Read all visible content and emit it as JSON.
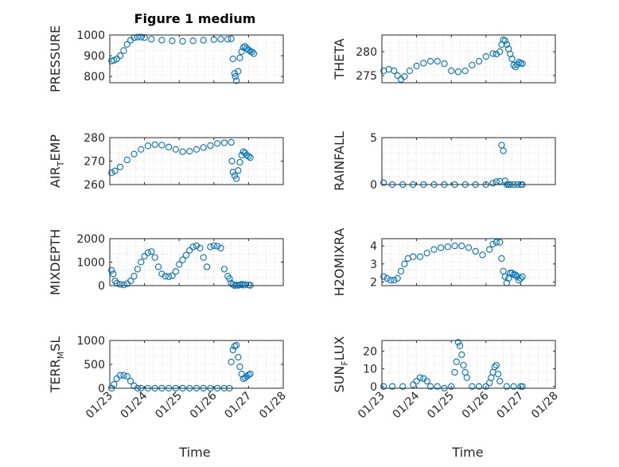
{
  "figure": {
    "title": "Figure 1 medium",
    "marker_color": "#0072BD"
  },
  "chart_data": [
    {
      "type": "scatter",
      "ylabel": "PRESSURE",
      "ylim": [
        770,
        1000
      ],
      "yticks": [
        800,
        900,
        1000
      ],
      "xlim": [
        0,
        5
      ],
      "xticks": [
        "01/23",
        "01/24",
        "01/25",
        "01/26",
        "01/27",
        "01/28"
      ],
      "grid": true,
      "x": [
        0.05,
        0.12,
        0.2,
        0.3,
        0.4,
        0.5,
        0.6,
        0.7,
        0.8,
        0.9,
        1.0,
        1.2,
        1.5,
        1.8,
        2.1,
        2.4,
        2.7,
        3.0,
        3.2,
        3.4,
        3.5,
        3.55,
        3.6,
        3.62,
        3.65,
        3.7,
        3.75,
        3.8,
        3.85,
        3.9,
        3.95,
        4.0,
        4.05,
        4.1,
        4.15
      ],
      "y": [
        875,
        878,
        885,
        900,
        925,
        955,
        975,
        987,
        990,
        990,
        988,
        980,
        975,
        972,
        970,
        972,
        975,
        978,
        980,
        980,
        982,
        885,
        815,
        800,
        780,
        825,
        890,
        920,
        940,
        945,
        935,
        928,
        922,
        918,
        910
      ]
    },
    {
      "type": "scatter",
      "ylabel": "THETA",
      "ylim": [
        273.5,
        283.5
      ],
      "yticks": [
        275,
        280
      ],
      "xlim": [
        0,
        5
      ],
      "xticks": [
        "01/23",
        "01/24",
        "01/25",
        "01/26",
        "01/27",
        "01/28"
      ],
      "grid": true,
      "x": [
        0.05,
        0.2,
        0.35,
        0.45,
        0.55,
        0.65,
        0.8,
        1.0,
        1.2,
        1.4,
        1.6,
        1.8,
        2.0,
        2.2,
        2.4,
        2.6,
        2.8,
        3.0,
        3.2,
        3.3,
        3.4,
        3.45,
        3.5,
        3.55,
        3.6,
        3.65,
        3.7,
        3.75,
        3.8,
        3.85,
        3.9,
        3.95,
        4.0,
        4.05
      ],
      "y": [
        276,
        276.3,
        276,
        275,
        274.2,
        274.8,
        276,
        277,
        277.6,
        278,
        278,
        277.5,
        276,
        275.8,
        276,
        277.2,
        278,
        279,
        279.6,
        279.5,
        280,
        281.5,
        282.5,
        282.3,
        281.5,
        280.6,
        279.5,
        278.5,
        277.2,
        276.8,
        277.3,
        277.8,
        277.6,
        277.5
      ]
    },
    {
      "type": "scatter",
      "ylabel": "AIR_TEMP",
      "ylim": [
        260,
        280
      ],
      "yticks": [
        260,
        270,
        280
      ],
      "xlim": [
        0,
        5
      ],
      "xticks": [
        "01/23",
        "01/24",
        "01/25",
        "01/26",
        "01/27",
        "01/28"
      ],
      "grid": true,
      "x": [
        0.05,
        0.15,
        0.3,
        0.5,
        0.7,
        0.9,
        1.1,
        1.3,
        1.5,
        1.7,
        1.9,
        2.1,
        2.3,
        2.5,
        2.7,
        2.9,
        3.1,
        3.3,
        3.5,
        3.52,
        3.55,
        3.6,
        3.65,
        3.7,
        3.75,
        3.8,
        3.85,
        3.9,
        3.95,
        4.0,
        4.05
      ],
      "y": [
        265,
        265.8,
        267.5,
        270.5,
        273,
        275,
        276.5,
        277,
        276.8,
        276,
        275,
        274,
        274.2,
        275,
        275.8,
        276.6,
        277.5,
        277.8,
        278,
        270,
        265.3,
        263.8,
        262.5,
        266,
        269.5,
        272.5,
        274,
        273.5,
        272.5,
        272,
        271.5
      ]
    },
    {
      "type": "scatter",
      "ylabel": "RAINFALL",
      "ylim": [
        0,
        5
      ],
      "yticks": [
        0,
        5
      ],
      "xlim": [
        0,
        5
      ],
      "xticks": [
        "01/23",
        "01/24",
        "01/25",
        "01/26",
        "01/27",
        "01/28"
      ],
      "grid": true,
      "x": [
        0.05,
        0.3,
        0.6,
        0.9,
        1.2,
        1.5,
        1.8,
        2.1,
        2.4,
        2.7,
        3.0,
        3.2,
        3.3,
        3.4,
        3.45,
        3.5,
        3.55,
        3.6,
        3.65,
        3.7,
        3.8,
        3.9,
        4.0,
        4.05
      ],
      "y": [
        0.2,
        0,
        0,
        0,
        0,
        0,
        0,
        0,
        0,
        0,
        0,
        0.15,
        0.3,
        0.35,
        4.2,
        3.6,
        0.4,
        0,
        0,
        0,
        0,
        0,
        0,
        0
      ]
    },
    {
      "type": "scatter",
      "ylabel": "MIXDEPTH",
      "ylim": [
        0,
        2000
      ],
      "yticks": [
        0,
        1000,
        2000
      ],
      "xlim": [
        0,
        5
      ],
      "xticks": [
        "01/23",
        "01/24",
        "01/25",
        "01/26",
        "01/27",
        "01/28"
      ],
      "grid": true,
      "x": [
        0.05,
        0.1,
        0.15,
        0.2,
        0.3,
        0.4,
        0.5,
        0.6,
        0.7,
        0.8,
        0.9,
        1.0,
        1.1,
        1.2,
        1.3,
        1.4,
        1.5,
        1.6,
        1.7,
        1.8,
        1.9,
        2.0,
        2.1,
        2.2,
        2.3,
        2.4,
        2.5,
        2.6,
        2.7,
        2.8,
        2.9,
        3.0,
        3.1,
        3.2,
        3.3,
        3.4,
        3.45,
        3.5,
        3.55,
        3.6,
        3.65,
        3.7,
        3.75,
        3.8,
        3.85,
        3.9,
        4.0,
        4.05
      ],
      "y": [
        650,
        500,
        200,
        100,
        50,
        30,
        80,
        200,
        400,
        700,
        1000,
        1250,
        1400,
        1450,
        1200,
        800,
        500,
        400,
        380,
        420,
        600,
        900,
        1100,
        1300,
        1500,
        1650,
        1700,
        1600,
        1200,
        800,
        1650,
        1700,
        1680,
        1600,
        700,
        400,
        300,
        100,
        50,
        0,
        20,
        10,
        30,
        60,
        20,
        40,
        30,
        10
      ]
    },
    {
      "type": "scatter",
      "ylabel": "H2OMIXRA",
      "ylim": [
        1.8,
        4.4
      ],
      "yticks": [
        2,
        3,
        4
      ],
      "xlim": [
        0,
        5
      ],
      "xticks": [
        "01/23",
        "01/24",
        "01/25",
        "01/26",
        "01/27",
        "01/28"
      ],
      "grid": true,
      "x": [
        0.05,
        0.15,
        0.25,
        0.35,
        0.45,
        0.55,
        0.65,
        0.75,
        0.9,
        1.1,
        1.3,
        1.5,
        1.7,
        1.9,
        2.1,
        2.3,
        2.5,
        2.7,
        2.9,
        3.1,
        3.2,
        3.3,
        3.4,
        3.45,
        3.5,
        3.55,
        3.6,
        3.65,
        3.7,
        3.75,
        3.8,
        3.85,
        3.9,
        3.95,
        4.0,
        4.05
      ],
      "y": [
        2.3,
        2.2,
        2.1,
        2.1,
        2.2,
        2.6,
        3.0,
        3.3,
        3.4,
        3.4,
        3.6,
        3.8,
        3.9,
        3.95,
        4.0,
        4.0,
        3.9,
        3.7,
        3.5,
        3.8,
        4.1,
        4.2,
        4.2,
        3.3,
        2.6,
        2.3,
        1.95,
        2.2,
        2.5,
        2.5,
        2.4,
        2.4,
        2.3,
        2.1,
        2.2,
        2.3
      ]
    },
    {
      "type": "scatter",
      "ylabel": "TERR_MSL",
      "ylim": [
        0,
        1000
      ],
      "yticks": [
        0,
        500,
        1000
      ],
      "xlim": [
        0,
        5
      ],
      "xticks": [
        "01/23",
        "01/24",
        "01/25",
        "01/26",
        "01/27",
        "01/28"
      ],
      "grid": true,
      "x": [
        0.05,
        0.12,
        0.2,
        0.3,
        0.4,
        0.5,
        0.6,
        0.7,
        0.8,
        0.9,
        1.1,
        1.3,
        1.5,
        1.7,
        1.9,
        2.1,
        2.3,
        2.5,
        2.7,
        2.9,
        3.1,
        3.3,
        3.45,
        3.5,
        3.55,
        3.6,
        3.65,
        3.7,
        3.75,
        3.8,
        3.85,
        3.9,
        3.95,
        4.0,
        4.05
      ],
      "y": [
        0,
        80,
        200,
        270,
        270,
        250,
        150,
        50,
        0,
        0,
        0,
        0,
        0,
        0,
        0,
        0,
        0,
        0,
        0,
        0,
        0,
        0,
        0,
        550,
        800,
        880,
        900,
        650,
        450,
        300,
        200,
        220,
        250,
        280,
        300
      ]
    },
    {
      "type": "scatter",
      "ylabel": "SUN_FLUX",
      "ylim": [
        -1,
        26
      ],
      "yticks": [
        0,
        10,
        20
      ],
      "xlim": [
        0,
        5
      ],
      "xticks": [
        "01/23",
        "01/24",
        "01/25",
        "01/26",
        "01/27",
        "01/28"
      ],
      "grid": true,
      "x": [
        0.05,
        0.3,
        0.6,
        0.9,
        1.0,
        1.1,
        1.2,
        1.3,
        1.4,
        1.6,
        1.8,
        2.0,
        2.1,
        2.15,
        2.2,
        2.25,
        2.3,
        2.35,
        2.4,
        2.45,
        2.6,
        2.8,
        3.0,
        3.1,
        3.15,
        3.2,
        3.25,
        3.3,
        3.35,
        3.4,
        3.6,
        3.8,
        4.0,
        4.05
      ],
      "y": [
        0,
        0,
        0,
        1,
        3,
        5,
        4.5,
        3,
        0,
        0,
        -1,
        0,
        8,
        14,
        25,
        23,
        18,
        12,
        8,
        5,
        0,
        0,
        0,
        2,
        5,
        8,
        11,
        12,
        7,
        3,
        0,
        0,
        0,
        0
      ]
    }
  ]
}
